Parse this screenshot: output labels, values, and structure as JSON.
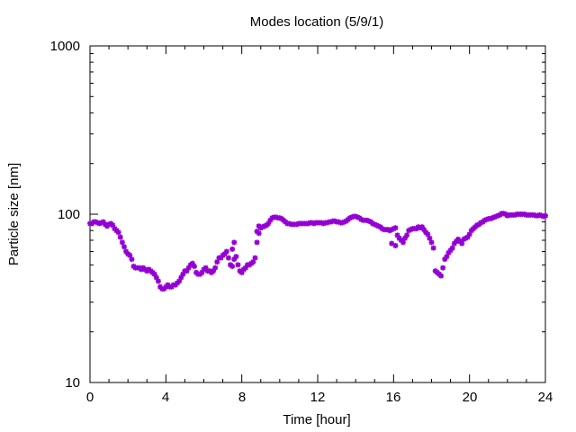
{
  "chart_data": {
    "type": "scatter",
    "title": "Modes location (5/9/1)",
    "xlabel": "Time [hour]",
    "ylabel": "Particle size [nm]",
    "xlim": [
      0,
      24
    ],
    "ylim": [
      10,
      1000
    ],
    "yscale": "log",
    "xticks": [
      "0",
      "4",
      "8",
      "12",
      "16",
      "20",
      "24"
    ],
    "yticks": [
      "10",
      "100",
      "1000"
    ],
    "grid": false,
    "marker_color": "#9400d3",
    "x": [
      0.0,
      0.1,
      0.2,
      0.3,
      0.4,
      0.5,
      0.6,
      0.7,
      0.8,
      0.9,
      1.0,
      1.1,
      1.2,
      1.3,
      1.4,
      1.5,
      1.6,
      1.7,
      1.8,
      1.9,
      2.0,
      2.1,
      2.2,
      2.3,
      2.4,
      2.5,
      2.6,
      2.7,
      2.8,
      2.9,
      3.0,
      3.1,
      3.2,
      3.3,
      3.4,
      3.5,
      3.6,
      3.7,
      3.8,
      3.9,
      4.0,
      4.1,
      4.2,
      4.3,
      4.4,
      4.5,
      4.6,
      4.7,
      4.8,
      4.9,
      5.0,
      5.1,
      5.2,
      5.3,
      5.4,
      5.5,
      5.6,
      5.7,
      5.8,
      5.9,
      6.0,
      6.1,
      6.2,
      6.3,
      6.4,
      6.5,
      6.6,
      6.7,
      6.8,
      6.9,
      7.0,
      7.1,
      7.2,
      7.3,
      7.4,
      7.5,
      7.6,
      7.7,
      7.8,
      7.9,
      8.0,
      8.1,
      8.2,
      8.3,
      8.4,
      8.5,
      8.6,
      8.7,
      8.8,
      8.9,
      9.0,
      9.1,
      9.2,
      9.3,
      9.4,
      9.5,
      9.6,
      9.7,
      9.8,
      9.9,
      10.0,
      10.1,
      10.2,
      10.3,
      10.4,
      10.5,
      10.6,
      10.7,
      10.8,
      10.9,
      11.0,
      11.1,
      11.2,
      11.3,
      11.4,
      11.5,
      11.6,
      11.7,
      11.8,
      11.9,
      12.0,
      12.1,
      12.2,
      12.3,
      12.4,
      12.5,
      12.6,
      12.7,
      12.8,
      12.9,
      13.0,
      13.1,
      13.2,
      13.3,
      13.4,
      13.5,
      13.6,
      13.7,
      13.8,
      13.9,
      14.0,
      14.1,
      14.2,
      14.3,
      14.4,
      14.5,
      14.6,
      14.7,
      14.8,
      14.9,
      15.0,
      15.1,
      15.2,
      15.3,
      15.4,
      15.5,
      15.6,
      15.7,
      15.8,
      15.9,
      16.0,
      16.1,
      16.2,
      16.3,
      16.4,
      16.5,
      16.6,
      16.7,
      16.8,
      16.9,
      17.0,
      17.1,
      17.2,
      17.3,
      17.4,
      17.5,
      17.6,
      17.7,
      17.8,
      17.9,
      18.0,
      18.1,
      18.2,
      18.3,
      18.4,
      18.5,
      18.6,
      18.7,
      18.8,
      18.9,
      19.0,
      19.1,
      19.2,
      19.3,
      19.4,
      19.5,
      19.6,
      19.7,
      19.8,
      19.9,
      20.0,
      20.1,
      20.2,
      20.3,
      20.4,
      20.5,
      20.6,
      20.7,
      20.8,
      20.9,
      21.0,
      21.1,
      21.2,
      21.3,
      21.4,
      21.5,
      21.6,
      21.7,
      21.8,
      21.9,
      22.0,
      22.1,
      22.2,
      22.3,
      22.4,
      22.5,
      22.6,
      22.7,
      22.8,
      22.9,
      23.0,
      23.1,
      23.2,
      23.3,
      23.4,
      23.5,
      23.6,
      23.7,
      23.8,
      23.9,
      24.0,
      7.6,
      7.5,
      8.8,
      8.9,
      15.9,
      16.1
    ],
    "y": [
      88,
      88,
      90,
      90,
      89,
      88,
      89,
      90,
      87,
      85,
      87,
      88,
      86,
      82,
      80,
      78,
      73,
      68,
      64,
      60,
      58,
      57,
      54,
      49,
      48,
      48,
      48,
      47,
      48,
      47,
      46,
      47,
      46,
      45,
      44,
      42,
      40,
      37,
      36,
      36,
      37,
      38,
      37,
      37,
      38,
      38,
      39,
      40,
      42,
      44,
      46,
      46,
      48,
      50,
      51,
      49,
      45,
      44,
      44,
      45,
      47,
      48,
      46,
      46,
      45,
      46,
      48,
      52,
      55,
      55,
      57,
      58,
      60,
      55,
      50,
      49,
      54,
      56,
      50,
      46,
      45,
      47,
      48,
      50,
      50,
      51,
      52,
      55,
      68,
      77,
      83,
      84,
      85,
      86,
      88,
      92,
      95,
      96,
      96,
      95,
      95,
      94,
      92,
      90,
      88,
      88,
      87,
      87,
      87,
      87,
      88,
      88,
      88,
      88,
      88,
      88,
      89,
      89,
      88,
      89,
      89,
      89,
      89,
      88,
      89,
      89,
      90,
      90,
      91,
      91,
      90,
      90,
      89,
      89,
      90,
      91,
      93,
      95,
      96,
      97,
      97,
      96,
      95,
      93,
      92,
      92,
      92,
      91,
      90,
      88,
      87,
      86,
      85,
      84,
      82,
      81,
      81,
      81,
      80,
      81,
      82,
      83,
      75,
      72,
      70,
      68,
      72,
      75,
      80,
      81,
      82,
      82,
      82,
      84,
      83,
      84,
      81,
      78,
      76,
      72,
      68,
      63,
      46,
      45,
      44,
      43,
      48,
      54,
      56,
      59,
      61,
      63,
      67,
      69,
      71,
      69,
      67,
      71,
      72,
      73,
      76,
      80,
      82,
      84,
      86,
      87,
      89,
      90,
      92,
      93,
      94,
      94,
      95,
      96,
      97,
      98,
      99,
      101,
      101,
      100,
      98,
      99,
      99,
      99,
      99,
      100,
      100,
      100,
      100,
      100,
      99,
      99,
      99,
      99,
      99,
      98,
      98,
      99,
      98,
      97,
      98,
      68,
      62,
      79,
      85,
      67,
      65
    ]
  }
}
